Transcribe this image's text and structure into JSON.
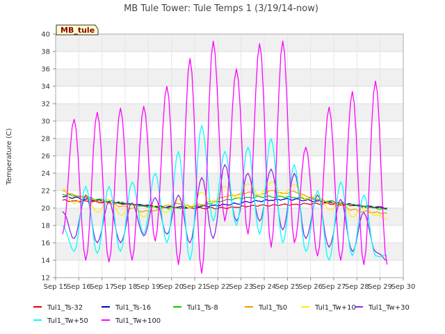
{
  "chart_data": {
    "type": "line",
    "title": "MB Tule Tower: Tule Temps 1 (3/19/14-now)",
    "xlabel": "",
    "ylabel": "Temperature (C)",
    "badge": "MB_tule",
    "ylim": [
      12,
      40
    ],
    "yticks": [
      12,
      14,
      16,
      18,
      20,
      22,
      24,
      26,
      28,
      30,
      32,
      34,
      36,
      38,
      40
    ],
    "xlim": [
      15,
      30
    ],
    "xticks": [
      15,
      16,
      17,
      18,
      19,
      20,
      21,
      22,
      23,
      24,
      25,
      26,
      27,
      28,
      29,
      30
    ],
    "xtick_labels": [
      "Sep 15",
      "Sep 16",
      "Sep 17",
      "Sep 18",
      "Sep 19",
      "Sep 20",
      "Sep 21",
      "Sep 22",
      "Sep 23",
      "Sep 24",
      "Sep 25",
      "Sep 26",
      "Sep 27",
      "Sep 28",
      "Sep 29",
      "Sep 30"
    ],
    "grid": true,
    "legend_position": "bottom",
    "x": [
      15.3,
      15.8,
      16.3,
      16.8,
      17.3,
      17.8,
      18.3,
      18.8,
      19.3,
      19.8,
      20.3,
      20.8,
      21.3,
      21.8,
      22.3,
      22.8,
      23.3,
      23.8,
      24.3,
      24.8,
      25.3,
      25.8,
      26.3,
      26.8,
      27.3,
      27.8,
      28.3,
      28.8,
      29.3
    ],
    "series": [
      {
        "name": "Tul1_Ts-32",
        "color": "#dd0000",
        "values": [
          20.9,
          20.8,
          20.8,
          20.7,
          20.6,
          20.5,
          20.4,
          20.3,
          20.2,
          20.1,
          20.1,
          20.0,
          20.0,
          20.0,
          20.0,
          20.1,
          20.2,
          20.3,
          20.3,
          20.4,
          20.4,
          20.5,
          20.5,
          20.5,
          20.4,
          20.3,
          20.2,
          20.1,
          20.0
        ]
      },
      {
        "name": "Tul1_Ts-16",
        "color": "#0000cc",
        "values": [
          21.3,
          21.2,
          21.0,
          20.9,
          20.7,
          20.6,
          20.4,
          20.3,
          20.2,
          20.1,
          20.1,
          20.1,
          20.2,
          20.3,
          20.4,
          20.5,
          20.7,
          20.8,
          20.9,
          21.0,
          21.0,
          20.9,
          20.8,
          20.7,
          20.5,
          20.4,
          20.2,
          20.1,
          20.0
        ]
      },
      {
        "name": "Tul1_Ts-8",
        "color": "#00cc00",
        "values": [
          21.6,
          21.4,
          21.2,
          21.0,
          20.8,
          20.6,
          20.4,
          20.2,
          20.1,
          20.0,
          20.0,
          20.1,
          20.3,
          20.6,
          20.9,
          21.1,
          21.2,
          21.3,
          21.3,
          21.3,
          21.2,
          21.1,
          21.0,
          20.8,
          20.6,
          20.4,
          20.2,
          20.0,
          19.8
        ]
      },
      {
        "name": "Tul1_Ts0",
        "color": "#ff9900",
        "values": [
          22.0,
          21.5,
          21.2,
          20.8,
          20.6,
          20.2,
          20.0,
          19.6,
          19.7,
          20.3,
          20.5,
          20.2,
          20.4,
          20.8,
          21.3,
          21.5,
          21.8,
          21.5,
          22.0,
          21.7,
          21.9,
          21.4,
          21.0,
          20.6,
          20.3,
          19.8,
          19.6,
          19.5,
          19.4
        ]
      },
      {
        "name": "Tul1_Tw+10",
        "color": "#ffee00",
        "values": [
          22.2,
          20.5,
          21.5,
          19.5,
          21.0,
          19.2,
          20.5,
          19.0,
          20.3,
          19.5,
          21.0,
          20.0,
          21.8,
          20.6,
          22.5,
          21.2,
          22.8,
          21.5,
          23.0,
          21.6,
          22.7,
          21.0,
          21.5,
          19.8,
          20.5,
          19.0,
          20.0,
          19.2,
          18.8
        ]
      },
      {
        "name": "Tul1_Tw+30",
        "color": "#8a2be2",
        "values": [
          19.6,
          16.5,
          21.5,
          16.0,
          20.7,
          16.0,
          20.6,
          16.8,
          21.2,
          17.0,
          21.5,
          16.0,
          23.5,
          16.5,
          25.0,
          18.5,
          24.0,
          18.5,
          24.5,
          17.5,
          24.0,
          16.5,
          21.5,
          15.5,
          21.0,
          15.0,
          19.5,
          15.0,
          14.0
        ]
      },
      {
        "name": "Tul1_Tw+50",
        "color": "#00ffff",
        "values": [
          18.0,
          15.0,
          22.5,
          14.8,
          22.5,
          15.0,
          23.0,
          17.0,
          24.0,
          16.0,
          26.5,
          14.0,
          29.5,
          18.5,
          26.5,
          18.0,
          27.0,
          17.0,
          28.0,
          16.0,
          25.0,
          15.0,
          22.0,
          14.0,
          23.0,
          14.5,
          21.5,
          14.5,
          14.5
        ]
      },
      {
        "name": "Tul1_Tw+100",
        "color": "#ff00ff",
        "values": [
          17.0,
          30.2,
          14.0,
          31.0,
          13.8,
          31.5,
          14.0,
          31.7,
          16.2,
          34.0,
          13.5,
          37.2,
          12.5,
          39.2,
          18.5,
          36.0,
          17.0,
          38.9,
          15.5,
          39.2,
          16.0,
          27.0,
          14.5,
          31.6,
          14.0,
          33.4,
          13.5,
          34.6,
          13.5
        ]
      }
    ]
  }
}
